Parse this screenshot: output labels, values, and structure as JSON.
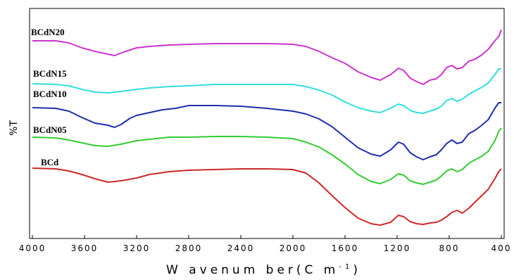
{
  "chart_data": {
    "type": "line",
    "xlabel": "W avenum ber(C m",
    "xlabel_sup": "-1",
    "xlabel_close": ")",
    "ylabel": "%T",
    "xlim": [
      4000,
      400
    ],
    "x_ticks": [
      "4000",
      "3600",
      "3200",
      "2800",
      "2400",
      "2000",
      "1600",
      "1200",
      "800",
      "400"
    ],
    "grid": false,
    "y_values_relative": "vertical offset units; each series is offset (stacked) for clarity",
    "series": [
      {
        "name": "BCdN20",
        "color": "#cc33cc",
        "points": [
          [
            4000,
            18
          ],
          [
            3820,
            18
          ],
          [
            3720,
            21
          ],
          [
            3620,
            28
          ],
          [
            3520,
            33
          ],
          [
            3420,
            37
          ],
          [
            3370,
            39
          ],
          [
            3300,
            34
          ],
          [
            3200,
            28
          ],
          [
            3100,
            26
          ],
          [
            2950,
            24
          ],
          [
            2800,
            23
          ],
          [
            2600,
            22
          ],
          [
            2400,
            22
          ],
          [
            2200,
            22
          ],
          [
            2000,
            23
          ],
          [
            1900,
            26
          ],
          [
            1800,
            33
          ],
          [
            1700,
            42
          ],
          [
            1600,
            50
          ],
          [
            1500,
            62
          ],
          [
            1400,
            70
          ],
          [
            1330,
            74
          ],
          [
            1250,
            66
          ],
          [
            1190,
            57
          ],
          [
            1150,
            60
          ],
          [
            1100,
            71
          ],
          [
            1050,
            76
          ],
          [
            1000,
            80
          ],
          [
            950,
            74
          ],
          [
            900,
            72
          ],
          [
            860,
            66
          ],
          [
            820,
            56
          ],
          [
            780,
            53
          ],
          [
            740,
            58
          ],
          [
            700,
            56
          ],
          [
            650,
            47
          ],
          [
            600,
            44
          ],
          [
            550,
            38
          ],
          [
            500,
            30
          ],
          [
            450,
            18
          ],
          [
            420,
            12
          ],
          [
            400,
            2
          ]
        ]
      },
      {
        "name": "BCdN15",
        "color": "#33dddd",
        "points": [
          [
            4000,
            79
          ],
          [
            3820,
            80
          ],
          [
            3720,
            82
          ],
          [
            3620,
            87
          ],
          [
            3520,
            91
          ],
          [
            3420,
            92
          ],
          [
            3320,
            90
          ],
          [
            3200,
            87
          ],
          [
            3100,
            85
          ],
          [
            2950,
            83
          ],
          [
            2800,
            82
          ],
          [
            2600,
            80
          ],
          [
            2400,
            80
          ],
          [
            2200,
            80
          ],
          [
            2000,
            80
          ],
          [
            1900,
            83
          ],
          [
            1800,
            88
          ],
          [
            1700,
            95
          ],
          [
            1600,
            105
          ],
          [
            1500,
            113
          ],
          [
            1400,
            118
          ],
          [
            1330,
            120
          ],
          [
            1250,
            114
          ],
          [
            1190,
            108
          ],
          [
            1150,
            110
          ],
          [
            1100,
            117
          ],
          [
            1050,
            120
          ],
          [
            1000,
            121
          ],
          [
            950,
            118
          ],
          [
            900,
            115
          ],
          [
            860,
            111
          ],
          [
            820,
            103
          ],
          [
            780,
            100
          ],
          [
            740,
            104
          ],
          [
            700,
            101
          ],
          [
            650,
            94
          ],
          [
            600,
            89
          ],
          [
            550,
            84
          ],
          [
            500,
            78
          ],
          [
            450,
            66
          ],
          [
            420,
            58
          ],
          [
            400,
            58
          ]
        ]
      },
      {
        "name": "BCdN10",
        "color": "#1f2ea8",
        "points": [
          [
            4000,
            113
          ],
          [
            3820,
            114
          ],
          [
            3720,
            118
          ],
          [
            3620,
            127
          ],
          [
            3520,
            135
          ],
          [
            3420,
            138
          ],
          [
            3370,
            141
          ],
          [
            3320,
            137
          ],
          [
            3250,
            128
          ],
          [
            3200,
            124
          ],
          [
            3100,
            120
          ],
          [
            3000,
            116
          ],
          [
            2900,
            114
          ],
          [
            2800,
            110
          ],
          [
            2600,
            110
          ],
          [
            2400,
            111
          ],
          [
            2200,
            114
          ],
          [
            2000,
            118
          ],
          [
            1900,
            122
          ],
          [
            1800,
            129
          ],
          [
            1700,
            140
          ],
          [
            1600,
            155
          ],
          [
            1500,
            170
          ],
          [
            1400,
            179
          ],
          [
            1330,
            182
          ],
          [
            1250,
            173
          ],
          [
            1190,
            162
          ],
          [
            1150,
            165
          ],
          [
            1100,
            177
          ],
          [
            1050,
            183
          ],
          [
            1000,
            187
          ],
          [
            950,
            183
          ],
          [
            900,
            180
          ],
          [
            860,
            173
          ],
          [
            820,
            164
          ],
          [
            780,
            159
          ],
          [
            740,
            164
          ],
          [
            700,
            162
          ],
          [
            650,
            150
          ],
          [
            600,
            145
          ],
          [
            550,
            138
          ],
          [
            500,
            130
          ],
          [
            450,
            114
          ],
          [
            420,
            106
          ],
          [
            400,
            106
          ]
        ]
      },
      {
        "name": "BCdN05",
        "color": "#33cc33",
        "points": [
          [
            4000,
            155
          ],
          [
            3820,
            156
          ],
          [
            3720,
            159
          ],
          [
            3620,
            163
          ],
          [
            3520,
            167
          ],
          [
            3420,
            168
          ],
          [
            3320,
            165
          ],
          [
            3200,
            160
          ],
          [
            3100,
            158
          ],
          [
            2950,
            155
          ],
          [
            2800,
            155
          ],
          [
            2600,
            154
          ],
          [
            2400,
            154
          ],
          [
            2200,
            155
          ],
          [
            2000,
            157
          ],
          [
            1900,
            162
          ],
          [
            1800,
            169
          ],
          [
            1700,
            180
          ],
          [
            1600,
            193
          ],
          [
            1500,
            208
          ],
          [
            1400,
            218
          ],
          [
            1330,
            221
          ],
          [
            1250,
            215
          ],
          [
            1190,
            207
          ],
          [
            1150,
            209
          ],
          [
            1100,
            217
          ],
          [
            1050,
            220
          ],
          [
            1000,
            222
          ],
          [
            950,
            219
          ],
          [
            900,
            216
          ],
          [
            860,
            210
          ],
          [
            820,
            203
          ],
          [
            780,
            200
          ],
          [
            740,
            204
          ],
          [
            700,
            201
          ],
          [
            650,
            192
          ],
          [
            600,
            187
          ],
          [
            550,
            182
          ],
          [
            500,
            175
          ],
          [
            450,
            160
          ],
          [
            420,
            147
          ],
          [
            400,
            142
          ]
        ]
      },
      {
        "name": "BCd",
        "color": "#cc2828",
        "points": [
          [
            4000,
            199
          ],
          [
            3820,
            200
          ],
          [
            3720,
            203
          ],
          [
            3620,
            208
          ],
          [
            3520,
            214
          ],
          [
            3420,
            219
          ],
          [
            3320,
            217
          ],
          [
            3200,
            213
          ],
          [
            3100,
            208
          ],
          [
            2950,
            204
          ],
          [
            2800,
            202
          ],
          [
            2600,
            201
          ],
          [
            2400,
            200
          ],
          [
            2200,
            200
          ],
          [
            2000,
            201
          ],
          [
            1900,
            206
          ],
          [
            1800,
            220
          ],
          [
            1700,
            238
          ],
          [
            1600,
            255
          ],
          [
            1500,
            270
          ],
          [
            1400,
            278
          ],
          [
            1330,
            280
          ],
          [
            1250,
            276
          ],
          [
            1190,
            266
          ],
          [
            1150,
            268
          ],
          [
            1100,
            275
          ],
          [
            1050,
            278
          ],
          [
            1000,
            279
          ],
          [
            950,
            277
          ],
          [
            900,
            276
          ],
          [
            860,
            273
          ],
          [
            820,
            268
          ],
          [
            780,
            262
          ],
          [
            740,
            259
          ],
          [
            700,
            263
          ],
          [
            650,
            256
          ],
          [
            600,
            247
          ],
          [
            550,
            238
          ],
          [
            500,
            229
          ],
          [
            450,
            214
          ],
          [
            420,
            204
          ],
          [
            400,
            200
          ]
        ]
      }
    ]
  }
}
